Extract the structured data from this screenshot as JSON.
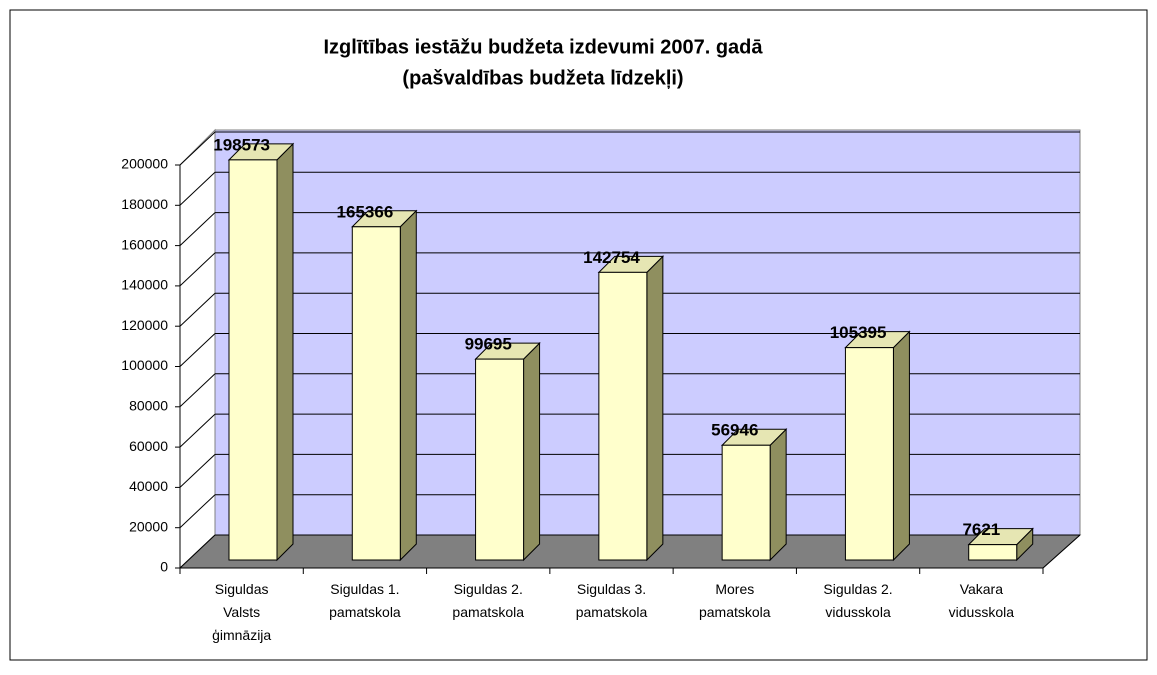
{
  "chart_data": {
    "type": "bar3d",
    "title": "Izglītības iestāžu budžeta izdevumi 2007. gadā",
    "subtitle": "(pašvaldības budžeta līdzekļi)",
    "categories": [
      "Siguldas Valsts ģimnāzija",
      "Siguldas 1. pamatskola",
      "Siguldas 2. pamatskola",
      "Siguldas 3. pamatskola",
      "Mores pamatskola",
      "Siguldas 2. vidusskola",
      "Vakara vidusskola"
    ],
    "values": [
      198573,
      165366,
      99695,
      142754,
      56946,
      105395,
      7621
    ],
    "color": "#ffffcc",
    "ylim": [
      0,
      200000
    ],
    "yticks": [
      0,
      20000,
      40000,
      60000,
      80000,
      100000,
      120000,
      140000,
      160000,
      180000,
      200000
    ],
    "grid": true
  }
}
